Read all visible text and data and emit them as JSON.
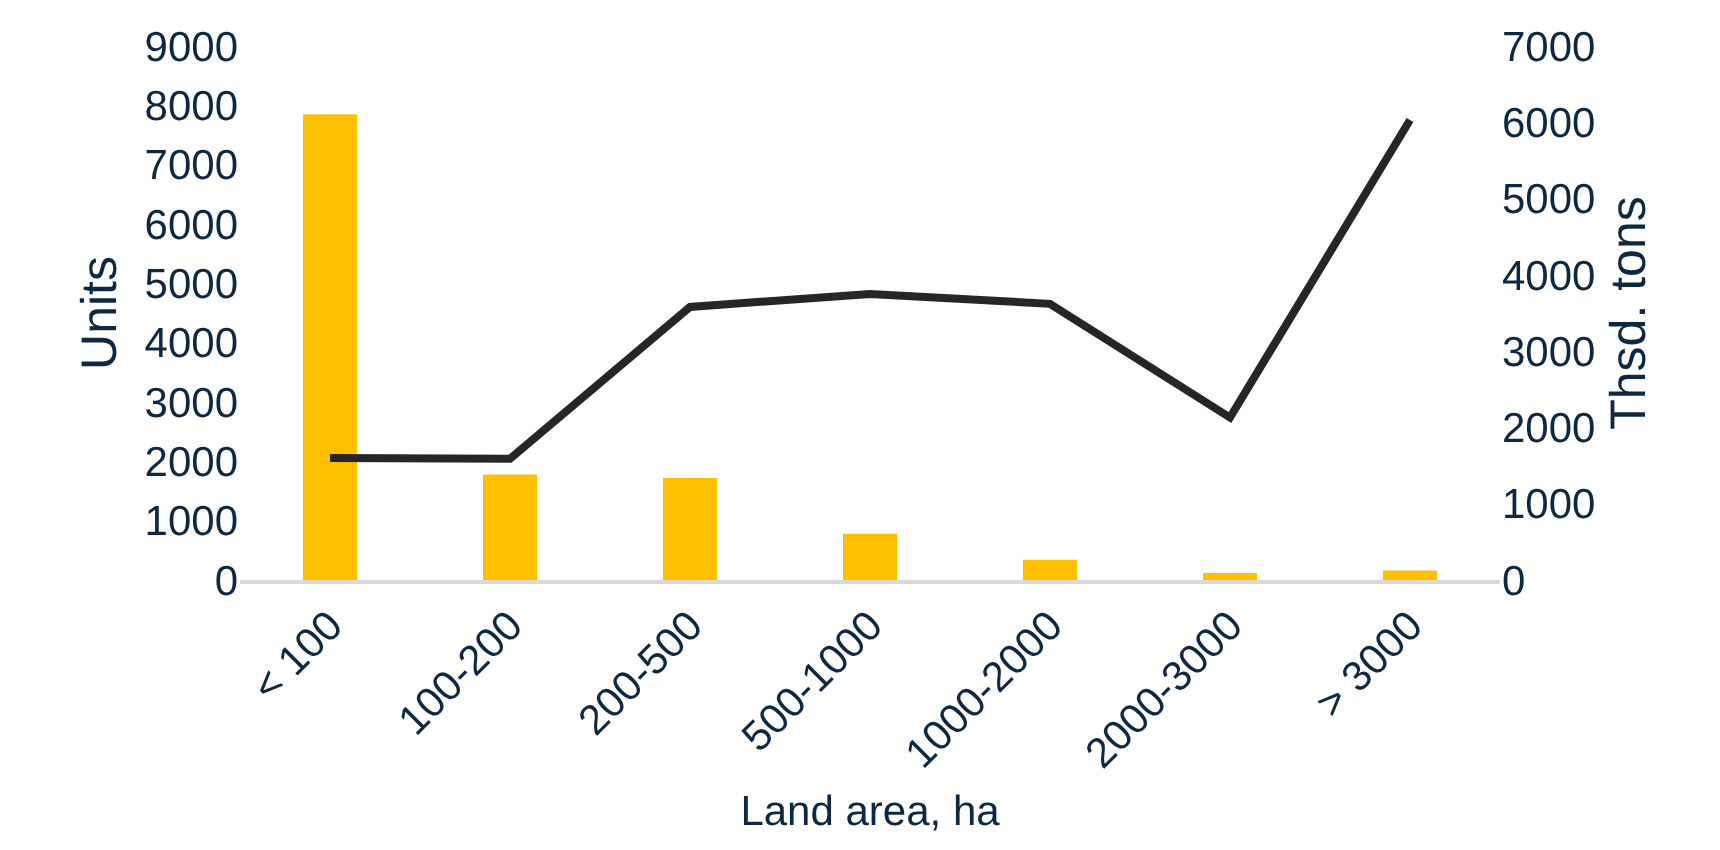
{
  "chart_data": {
    "type": "bar",
    "xlabel": "Land area, ha",
    "ylabel": "Units",
    "y2label": "Thsd. tons",
    "categories": [
      "< 100",
      "100-200",
      "200-500",
      "500-1000",
      "1000-2000",
      "2000-3000",
      "> 3000"
    ],
    "series": [
      {
        "color": "#ffc000",
        "values": [
          7850,
          1780,
          1720,
          780,
          340,
          120,
          160
        ]
      },
      {
        "type": "line",
        "axis": "y2",
        "color": "#262626",
        "values": [
          1600,
          1590,
          3580,
          3750,
          3620,
          2130,
          6030
        ]
      }
    ],
    "ylim": [
      0,
      9000
    ],
    "yticks": [
      0,
      1000,
      2000,
      3000,
      4000,
      5000,
      6000,
      7000,
      8000,
      9000
    ],
    "y2lim": [
      0,
      7000
    ],
    "y2ticks": [
      0,
      1000,
      2000,
      3000,
      4000,
      5000,
      6000,
      7000
    ],
    "grid": false,
    "marker": "none",
    "line_style": "solid"
  }
}
